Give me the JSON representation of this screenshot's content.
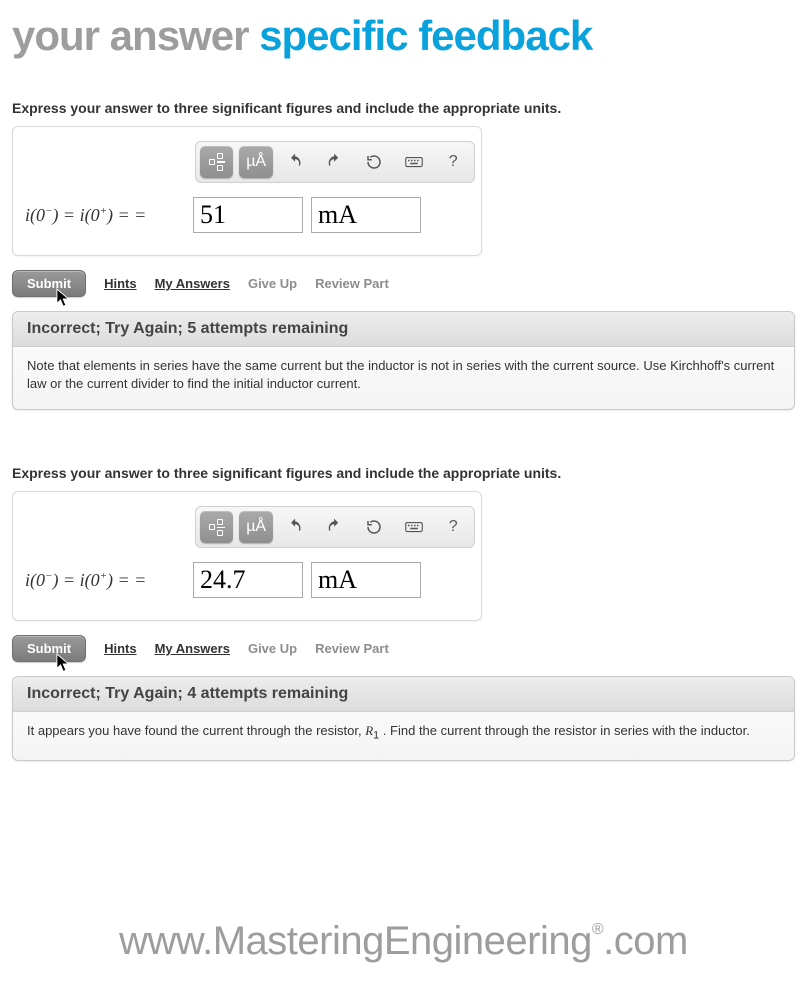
{
  "header": {
    "left": "your answer",
    "right": "specific feedback"
  },
  "colors": {
    "gray": "#9d9d9d",
    "blue": "#0aa2dc"
  },
  "toolbar": {
    "units_btn": "µÅ",
    "help_btn": "?"
  },
  "links": {
    "submit": "Submit",
    "hints": "Hints",
    "my_answers": "My Answers",
    "give_up": "Give Up",
    "review_part": "Review Part"
  },
  "attempts": [
    {
      "prompt": "Express your answer to three significant figures and include the appropriate units.",
      "equation_html": "i(0<span class='sup'>−</span>) = i(0<span class='sup'>+</span>) = =",
      "value": "51",
      "unit": "mA",
      "feedback_title": "Incorrect; Try Again; 5 attempts remaining",
      "feedback_body": "Note that elements in series have the same current but the inductor is not in series with the current source. Use Kirchhoff's current law or the current divider to find the initial inductor current."
    },
    {
      "prompt": "Express your answer to three significant figures and include the appropriate units.",
      "equation_html": "i(0<span class='sup'>−</span>) = i(0<span class='sup'>+</span>) = =",
      "value": "24.7",
      "unit": "mA",
      "feedback_title": "Incorrect; Try Again; 4 attempts remaining",
      "feedback_body": "It appears you have found the current through the resistor, <i>R</i><sub>1</sub> . Find the current through the resistor in series with the inductor."
    }
  ],
  "footer": {
    "prefix": "www.",
    "brand1": "Mastering",
    "brand2": "Engineering",
    "suffix": ".com"
  }
}
